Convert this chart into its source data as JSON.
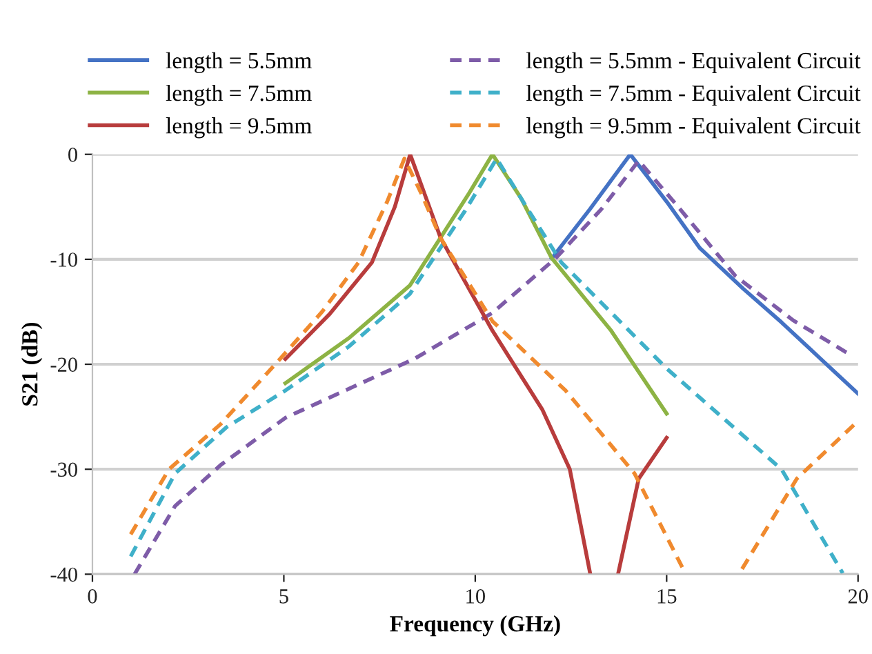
{
  "chart_data": {
    "type": "line",
    "xlabel": "Frequency (GHz)",
    "ylabel": "S21 (dB)",
    "xlim": [
      0,
      20
    ],
    "ylim": [
      -40,
      0
    ],
    "xticks": [
      0,
      5,
      10,
      15,
      20
    ],
    "yticks": [
      -40,
      -30,
      -20,
      -10,
      0
    ],
    "grid": "y",
    "legend": "top",
    "marker": "none",
    "series": [
      {
        "name": "length = 5.5mm",
        "color": "#4472c4",
        "line_style": "solid",
        "x": [
          12.0,
          13.0,
          14.05,
          15.0,
          15.86,
          17.0,
          18.0,
          19.0,
          20.0
        ],
        "values": [
          -9.9,
          -5.2,
          0,
          -4.5,
          -8.9,
          -12.8,
          -16.0,
          -19.4,
          -22.8
        ]
      },
      {
        "name": "length = 5.5mm - Equivalent Circuit",
        "color": "#7e5ca8",
        "line_style": "dashed",
        "x": [
          1.1,
          2.16,
          3.35,
          5.04,
          8.4,
          10.45,
          12.1,
          13.3,
          14.27,
          15.3,
          16.8,
          18.3,
          19.8
        ],
        "values": [
          -40,
          -33.5,
          -29.6,
          -25.1,
          -19.5,
          -15.1,
          -9.9,
          -5.2,
          -0.6,
          -5.0,
          -11.6,
          -15.8,
          -19.1
        ]
      },
      {
        "name": "length = 7.5mm",
        "color": "#8db344",
        "line_style": "solid",
        "x": [
          5.04,
          6.7,
          8.29,
          9.84,
          10.45,
          11.2,
          12.0,
          13.55,
          15.0
        ],
        "values": [
          -21.8,
          -17.5,
          -12.5,
          -3.7,
          0,
          -4.2,
          -9.9,
          -16.8,
          -24.7
        ]
      },
      {
        "name": "length = 7.5mm - Equivalent Circuit",
        "color": "#3fb0c9",
        "line_style": "dashed",
        "x": [
          1.0,
          2.16,
          3.5,
          5.04,
          6.7,
          8.29,
          9.73,
          10.56,
          11.3,
          12.25,
          15.0,
          18.0,
          19.6
        ],
        "values": [
          -38.3,
          -30.4,
          -26.0,
          -22.5,
          -18.3,
          -13.3,
          -5.4,
          -0.4,
          -4.8,
          -10.3,
          -20.4,
          -30.0,
          -39.9
        ]
      },
      {
        "name": "length = 9.5mm",
        "color": "#b83c3c",
        "line_style": "solid",
        "x": [
          5.04,
          6.2,
          7.3,
          7.9,
          8.3,
          8.7,
          9.1,
          10.45,
          11.75,
          12.47,
          13.0,
          13.4,
          13.73,
          14.27,
          15.0
        ],
        "values": [
          -19.5,
          -15.2,
          -10.3,
          -5.0,
          0,
          -4.0,
          -8.0,
          -16.8,
          -24.3,
          -30.0,
          -39.9,
          null,
          -40,
          -30.9,
          -27.0
        ]
      },
      {
        "name": "length = 9.5mm - Equivalent Circuit",
        "color": "#f08a2e",
        "line_style": "dashed",
        "x": [
          1.0,
          2.0,
          3.35,
          4.8,
          6.0,
          6.95,
          7.7,
          8.15,
          8.6,
          9.1,
          10.45,
          12.36,
          14.16,
          15.5,
          16.2,
          16.97,
          18.4,
          20.0
        ],
        "values": [
          -36.2,
          -30.0,
          -25.7,
          -19.9,
          -15.0,
          -10.3,
          -4.5,
          -0.4,
          -3.8,
          -8.0,
          -15.9,
          -22.5,
          -30.4,
          -40,
          null,
          -39.5,
          -30.9,
          -25.4
        ]
      }
    ]
  }
}
